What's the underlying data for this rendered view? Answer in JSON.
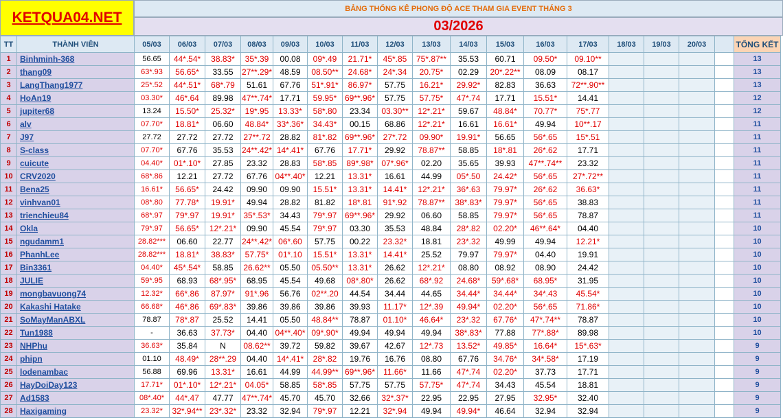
{
  "header": {
    "logo": "KETQUA04.NET",
    "title": "BẢNG THỐNG KÊ PHONG ĐỘ ACE THAM GIA EVENT THÁNG 3",
    "period": "03/2026"
  },
  "table": {
    "columns": {
      "tt": "TT",
      "member": "THÀNH VIÊN",
      "dates": [
        "05/03",
        "06/03",
        "07/03",
        "08/03",
        "09/03",
        "10/03",
        "11/03",
        "12/03",
        "13/03",
        "14/03",
        "15/03",
        "16/03",
        "17/03",
        "18/03",
        "19/03",
        "20/03"
      ],
      "total": "TỔNG KẾT"
    },
    "rows": [
      {
        "tt": 1,
        "name": "Binhminh-368",
        "scores": [
          "56.65",
          "44*.54*",
          "38.83*",
          "35*.39",
          "00.08",
          "09*.49",
          "21.71*",
          "45*.85",
          "75*.87**",
          "35.53",
          "60.71",
          "09.50*",
          "09.10**"
        ],
        "total": 13
      },
      {
        "tt": 2,
        "name": "thang09",
        "scores": [
          "63*.93",
          "56.65*",
          "33.55",
          "27**.29*",
          "48.59",
          "08.50**",
          "24.68*",
          "24*.34",
          "20.75*",
          "02.29",
          "20*.22**",
          "08.09",
          "08.17"
        ],
        "total": 13
      },
      {
        "tt": 3,
        "name": "LangThang1977",
        "scores": [
          "25*.52",
          "44*.51*",
          "68*.79",
          "51.61",
          "67.76",
          "51*.91*",
          "86.97*",
          "57.75",
          "16.21*",
          "29.92*",
          "82.83",
          "36.63",
          "72**.90**"
        ],
        "total": 13
      },
      {
        "tt": 4,
        "name": "HoAn19",
        "scores": [
          "03.30*",
          "46*.64",
          "89.98",
          "47**.74*",
          "17.71",
          "59.95*",
          "69**.96*",
          "57.75",
          "57.75*",
          "47*.74",
          "17.71",
          "15.51*",
          "14.41"
        ],
        "total": 12
      },
      {
        "tt": 5,
        "name": "jupiter68",
        "scores": [
          "13.24",
          "15.50*",
          "25.32*",
          "19*.95",
          "13.33*",
          "58*.80",
          "23.34",
          "03.30**",
          "12*.21*",
          "59.67",
          "48.84*",
          "70.77*",
          "75*.77"
        ],
        "total": 12
      },
      {
        "tt": 6,
        "name": "alv",
        "scores": [
          "07.70*",
          "18.81*",
          "06.60",
          "48.84*",
          "33*.36*",
          "34.43*",
          "00.15",
          "68.86",
          "12*.21*",
          "16.61",
          "16.61*",
          "49.94",
          "10**.17"
        ],
        "total": 11
      },
      {
        "tt": 7,
        "name": "J97",
        "scores": [
          "27.72",
          "27.72",
          "27.72",
          "27**.72",
          "28.82",
          "81*.82",
          "69**.96*",
          "27*.72",
          "09.90*",
          "19.91*",
          "56.65",
          "56*.65",
          "15*.51"
        ],
        "total": 11
      },
      {
        "tt": 8,
        "name": "S-class",
        "scores": [
          "07.70*",
          "67.76",
          "35.53",
          "24**.42*",
          "14*.41*",
          "67.76",
          "17.71*",
          "29.92",
          "78.87**",
          "58.85",
          "18*.81",
          "26*.62",
          "17.71"
        ],
        "total": 11
      },
      {
        "tt": 9,
        "name": "cuicute",
        "scores": [
          "04.40*",
          "01*.10*",
          "27.85",
          "23.32",
          "28.83",
          "58*.85",
          "89*.98*",
          "07*.96*",
          "02.20",
          "35.65",
          "39.93",
          "47**.74**",
          "23.32"
        ],
        "total": 11
      },
      {
        "tt": 10,
        "name": "CRV2020",
        "scores": [
          "68*.86",
          "12.21",
          "27.72",
          "67.76",
          "04**.40*",
          "12.21",
          "13.31*",
          "16.61",
          "44.99",
          "05*.50",
          "24.42*",
          "56*.65",
          "27*.72**"
        ],
        "total": 11
      },
      {
        "tt": 11,
        "name": "Bena25",
        "scores": [
          "16.61*",
          "56.65*",
          "24.42",
          "09.90",
          "09.90",
          "15.51*",
          "13.31*",
          "14.41*",
          "12*.21*",
          "36*.63",
          "79.97*",
          "26*.62",
          "36.63*"
        ],
        "total": 11
      },
      {
        "tt": 12,
        "name": "vinhvan01",
        "scores": [
          "08*.80",
          "77.78*",
          "19.91*",
          "49.94",
          "28.82",
          "81.82",
          "18*.81",
          "91*.92",
          "78.87**",
          "38*.83*",
          "79.97*",
          "56*.65",
          "38.83"
        ],
        "total": 11
      },
      {
        "tt": 13,
        "name": "trienchieu84",
        "scores": [
          "68*.97",
          "79*.97",
          "19.91*",
          "35*.53*",
          "34.43",
          "79*.97",
          "69**.96*",
          "29.92",
          "06.60",
          "58.85",
          "79.97*",
          "56*.65",
          "78.87"
        ],
        "total": 11
      },
      {
        "tt": 14,
        "name": "Okla",
        "scores": [
          "79*.97",
          "56.65*",
          "12*.21*",
          "09.90",
          "45.54",
          "79*.97",
          "03.30",
          "35.53",
          "48.84",
          "28*.82",
          "02.20*",
          "46**.64*",
          "04.40"
        ],
        "total": 10
      },
      {
        "tt": 15,
        "name": "ngudamm1",
        "scores": [
          "28.82***",
          "06.60",
          "22.77",
          "24**.42*",
          "06*.60",
          "57.75",
          "00.22",
          "23.32*",
          "18.81",
          "23*.32",
          "49.99",
          "49.94",
          "12.21*"
        ],
        "total": 10
      },
      {
        "tt": 16,
        "name": "PhanhLee",
        "scores": [
          "28.82***",
          "18.81*",
          "38.83*",
          "57.75*",
          "01*.10",
          "15.51*",
          "13.31*",
          "14.41*",
          "25.52",
          "79.97",
          "79.97*",
          "04.40",
          "19.91"
        ],
        "total": 10
      },
      {
        "tt": 17,
        "name": "Bin3361",
        "scores": [
          "04.40*",
          "45*.54*",
          "58.85",
          "26.62**",
          "05.50",
          "05.50**",
          "13.31*",
          "26.62",
          "12*.21*",
          "08.80",
          "08.92",
          "08.90",
          "24.42"
        ],
        "total": 10
      },
      {
        "tt": 18,
        "name": "JULIE",
        "scores": [
          "59*.95",
          "68.93",
          "68*.95*",
          "68.95",
          "45.54",
          "49.68",
          "08*.80*",
          "26.62",
          "68*.92",
          "24.68*",
          "59*.68*",
          "68.95*",
          "31.95"
        ],
        "total": 10
      },
      {
        "tt": 19,
        "name": "mongbavuong74",
        "scores": [
          "12.32*",
          "66*.86",
          "87.97*",
          "91*.96",
          "56.76",
          "02**.20",
          "44.54",
          "34.44",
          "44.65",
          "34.44*",
          "34.44*",
          "34*.43",
          "45.54*"
        ],
        "total": 10
      },
      {
        "tt": 20,
        "name": "Kakashi Hatake",
        "scores": [
          "66.68*",
          "46*.86",
          "69*.83*",
          "39.86",
          "39.86",
          "39.86",
          "39.93",
          "11.17*",
          "12*.39",
          "49.94*",
          "02.20*",
          "56*.65",
          "71.86*"
        ],
        "total": 10
      },
      {
        "tt": 21,
        "name": "SoMayManABXL",
        "scores": [
          "78.87",
          "78*.87",
          "25.52",
          "14.41",
          "05.50",
          "48.84**",
          "78.87",
          "01.10*",
          "46.64*",
          "23*.32",
          "67.76*",
          "47*.74**",
          "78.87"
        ],
        "total": 10
      },
      {
        "tt": 22,
        "name": "Tun1988",
        "scores": [
          "-",
          "36.63",
          "37.73*",
          "04.40",
          "04**.40*",
          "09*.90*",
          "49.94",
          "49.94",
          "49.94",
          "38*.83*",
          "77.88",
          "77*.88*",
          "89.98"
        ],
        "total": 10
      },
      {
        "tt": 23,
        "name": "NHPhu",
        "scores": [
          "36.63*",
          "35.84",
          "N",
          "08.62**",
          "39.72",
          "59.82",
          "39.67",
          "42.67",
          "12*.73",
          "13.52*",
          "49.85*",
          "16.64*",
          "15*.63*"
        ],
        "total": 9
      },
      {
        "tt": 24,
        "name": "phipn",
        "scores": [
          "01.10",
          "48.49*",
          "28**.29",
          "04.40",
          "14*.41*",
          "28*.82",
          "19.76",
          "16.76",
          "08.80",
          "67.76",
          "34.76*",
          "34*.58*",
          "17.19"
        ],
        "total": 9
      },
      {
        "tt": 25,
        "name": "lodenambac",
        "scores": [
          "56.88",
          "69.96",
          "13.31*",
          "16.61",
          "44.99",
          "44.99**",
          "69**.96*",
          "11.66*",
          "11.66",
          "47*.74",
          "02.20*",
          "37.73",
          "17.71"
        ],
        "total": 9
      },
      {
        "tt": 26,
        "name": "HayDoiDay123",
        "scores": [
          "17.71*",
          "01*.10*",
          "12*.21*",
          "04.05*",
          "58.85",
          "58*.85",
          "57.75",
          "57.75",
          "57.75*",
          "47*.74",
          "34.43",
          "45.54",
          "18.81"
        ],
        "total": 9
      },
      {
        "tt": 27,
        "name": "Ad1583",
        "scores": [
          "08*.40*",
          "44*.47",
          "47.77",
          "47**.74*",
          "45.70",
          "45.70",
          "32.66",
          "32*.37*",
          "22.95",
          "22.95",
          "27.95",
          "32.95*",
          "32.40"
        ],
        "total": 9
      },
      {
        "tt": 28,
        "name": "Haxigaming",
        "scores": [
          "23.32*",
          "32*.94**",
          "23*.32*",
          "23.32",
          "32.94",
          "79*.97",
          "12.21",
          "32*.94",
          "49.94",
          "49.94*",
          "46.64",
          "32.94",
          "32.94"
        ],
        "total": 9
      }
    ]
  }
}
